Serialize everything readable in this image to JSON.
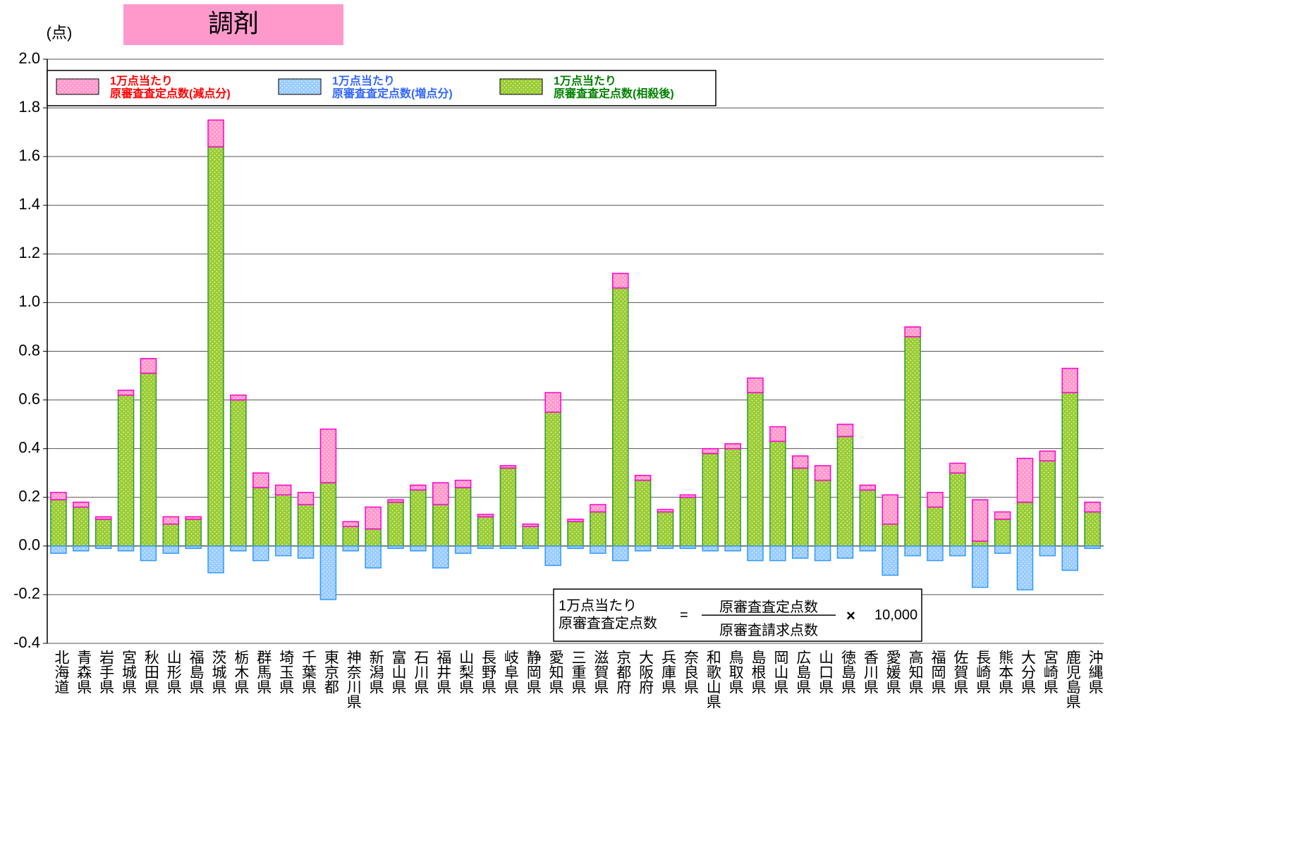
{
  "chart_data": {
    "type": "stacked_bar",
    "title": "調剤",
    "y_unit": "(点)",
    "categories": [
      "北海道",
      "青森県",
      "岩手県",
      "宮城県",
      "秋田県",
      "山形県",
      "福島県",
      "茨城県",
      "栃木県",
      "群馬県",
      "埼玉県",
      "千葉県",
      "東京都",
      "神奈川県",
      "新潟県",
      "富山県",
      "石川県",
      "福井県",
      "山梨県",
      "長野県",
      "岐阜県",
      "静岡県",
      "愛知県",
      "三重県",
      "滋賀県",
      "京都府",
      "大阪府",
      "兵庫県",
      "奈良県",
      "和歌山県",
      "鳥取県",
      "島根県",
      "岡山県",
      "広島県",
      "山口県",
      "徳島県",
      "香川県",
      "愛媛県",
      "高知県",
      "福岡県",
      "佐賀県",
      "長崎県",
      "熊本県",
      "大分県",
      "宮崎県",
      "鹿児島県",
      "沖縄県"
    ],
    "series": [
      {
        "name": "1万点当たり\n原審査査定点数(相殺後)",
        "color": "#99cc33",
        "stroke": "#339933",
        "text_color": "#008000",
        "values": [
          0.19,
          0.16,
          0.11,
          0.62,
          0.71,
          0.09,
          0.11,
          1.64,
          0.6,
          0.24,
          0.21,
          0.17,
          0.26,
          0.08,
          0.07,
          0.18,
          0.23,
          0.17,
          0.24,
          0.12,
          0.32,
          0.08,
          0.55,
          0.1,
          0.14,
          1.06,
          0.27,
          0.14,
          0.2,
          0.38,
          0.4,
          0.63,
          0.43,
          0.32,
          0.27,
          0.45,
          0.23,
          0.09,
          0.86,
          0.16,
          0.3,
          0.02,
          0.11,
          0.18,
          0.35,
          0.63,
          0.14
        ]
      },
      {
        "name": "1万点当たり\n原審査査定点数(減点分)",
        "color": "#ff99cc",
        "stroke": "#ff00cc",
        "text_color": "#ff0000",
        "values": [
          0.03,
          0.02,
          0.01,
          0.02,
          0.06,
          0.03,
          0.01,
          0.11,
          0.02,
          0.06,
          0.04,
          0.05,
          0.22,
          0.02,
          0.09,
          0.01,
          0.02,
          0.09,
          0.03,
          0.01,
          0.01,
          0.01,
          0.08,
          0.01,
          0.03,
          0.06,
          0.02,
          0.01,
          0.01,
          0.02,
          0.02,
          0.06,
          0.06,
          0.05,
          0.06,
          0.05,
          0.02,
          0.12,
          0.04,
          0.06,
          0.04,
          0.17,
          0.03,
          0.18,
          0.04,
          0.1,
          0.04
        ]
      },
      {
        "name": "1万点当たり\n原審査査定点数(増点分)",
        "color": "#99ccff",
        "stroke": "#3399ff",
        "text_color": "#3366ff",
        "values": [
          -0.03,
          -0.02,
          -0.01,
          -0.02,
          -0.06,
          -0.03,
          -0.01,
          -0.11,
          -0.02,
          -0.06,
          -0.04,
          -0.05,
          -0.22,
          -0.02,
          -0.09,
          -0.01,
          -0.02,
          -0.09,
          -0.03,
          -0.01,
          -0.01,
          -0.01,
          -0.08,
          -0.01,
          -0.03,
          -0.06,
          -0.02,
          -0.01,
          -0.01,
          -0.02,
          -0.02,
          -0.06,
          -0.06,
          -0.05,
          -0.06,
          -0.05,
          -0.02,
          -0.12,
          -0.04,
          -0.06,
          -0.04,
          -0.17,
          -0.03,
          -0.18,
          -0.04,
          -0.1,
          -0.01
        ]
      }
    ],
    "legend_order": [
      1,
      2,
      0
    ],
    "ylim": [
      -0.4,
      2.0
    ],
    "yticks": [
      -0.4,
      -0.2,
      {
        "value": 0,
        "label": "0.0"
      },
      0.2,
      0.4,
      0.6,
      0.8,
      {
        "value": 1,
        "label": "1.0"
      },
      1.2,
      1.4,
      1.6,
      1.8,
      {
        "value": 2,
        "label": "2.0"
      }
    ],
    "grid": true,
    "formula": {
      "left": "1万点当たり\n原審査査定点数",
      "equals": "=",
      "numerator": "原審査査定点数",
      "denominator": "原審査請求点数",
      "times": "×",
      "factor": "10,000"
    }
  }
}
